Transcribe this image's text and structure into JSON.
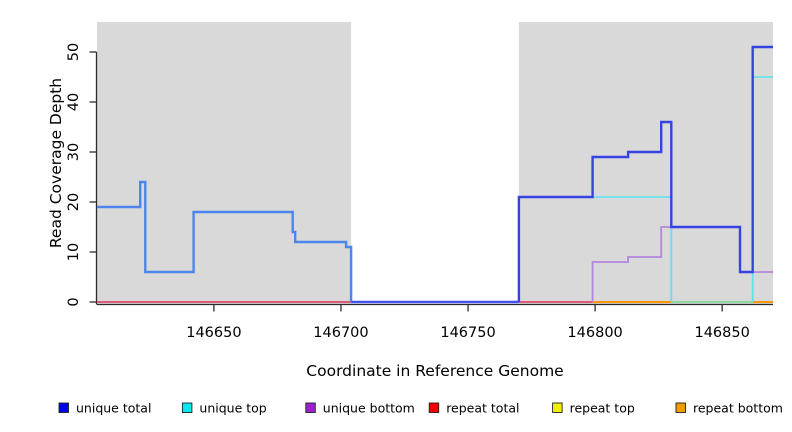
{
  "chart_data": {
    "type": "line",
    "title": "",
    "xlabel": "Coordinate in Reference Genome",
    "ylabel": "Read Coverage Depth",
    "xlim": [
      146604,
      146870
    ],
    "ylim": [
      0,
      56
    ],
    "grid": "off",
    "legend_position": "bottom",
    "x_ticks": [
      {
        "value": 146650,
        "label": "146650"
      },
      {
        "value": 146700,
        "label": "146700"
      },
      {
        "value": 146750,
        "label": "146750"
      },
      {
        "value": 146800,
        "label": "146800"
      },
      {
        "value": 146850,
        "label": "146850"
      }
    ],
    "y_ticks": [
      {
        "value": 0,
        "label": "0"
      },
      {
        "value": 10,
        "label": "10"
      },
      {
        "value": 20,
        "label": "20"
      },
      {
        "value": 30,
        "label": "30"
      },
      {
        "value": 40,
        "label": "40"
      },
      {
        "value": 50,
        "label": "50"
      }
    ],
    "shaded_regions": [
      {
        "x0": 146604,
        "x1": 146704,
        "color": "#D9D9D9"
      },
      {
        "x0": 146770,
        "x1": 146870,
        "color": "#D9D9D9"
      }
    ],
    "series": [
      {
        "name": "unique total",
        "type": "step",
        "step_points": [
          [
            146604,
            19
          ],
          [
            146621,
            24
          ],
          [
            146623,
            6
          ],
          [
            146642,
            18
          ],
          [
            146681,
            14
          ],
          [
            146682,
            12
          ],
          [
            146702,
            11
          ],
          [
            146704,
            0
          ],
          [
            146770,
            21
          ],
          [
            146799,
            29
          ],
          [
            146813,
            30
          ],
          [
            146826,
            36
          ],
          [
            146830,
            15
          ],
          [
            146857,
            6
          ],
          [
            146862,
            51
          ],
          [
            146870,
            51
          ]
        ]
      },
      {
        "name": "unique top",
        "type": "step",
        "step_points": [
          [
            146770,
            21
          ],
          [
            146830,
            0
          ],
          [
            146862,
            45
          ],
          [
            146870,
            45
          ]
        ]
      },
      {
        "name": "unique bottom",
        "type": "step",
        "step_points": [
          [
            146799,
            8
          ],
          [
            146813,
            9
          ],
          [
            146826,
            15
          ],
          [
            146857,
            6
          ],
          [
            146870,
            6
          ]
        ]
      },
      {
        "name": "repeat total",
        "type": "step",
        "step_points": [
          [
            146604,
            0
          ],
          [
            146870,
            0
          ]
        ]
      },
      {
        "name": "repeat top",
        "type": "step",
        "step_points": [
          [
            146604,
            0
          ],
          [
            146870,
            0
          ]
        ]
      },
      {
        "name": "repeat bottom",
        "type": "step",
        "step_points": [
          [
            146604,
            0
          ],
          [
            146870,
            0
          ]
        ]
      }
    ],
    "render_lines": [
      {
        "name": "baseline-repeat-left",
        "color": "#DD5A78",
        "width": 2,
        "points": [
          [
            146604,
            0
          ],
          [
            146704,
            0
          ]
        ]
      },
      {
        "name": "baseline-repeat-mid",
        "color": "#DD5A78",
        "width": 2,
        "points": [
          [
            146770,
            0
          ],
          [
            146799,
            0
          ]
        ]
      },
      {
        "name": "baseline-orange-1",
        "color": "#FF9500",
        "width": 2,
        "points": [
          [
            146799,
            0
          ],
          [
            146830,
            0
          ]
        ]
      },
      {
        "name": "baseline-green",
        "color": "#8FD9A0",
        "width": 2,
        "points": [
          [
            146830,
            0
          ],
          [
            146862,
            0
          ]
        ]
      },
      {
        "name": "baseline-orange-2",
        "color": "#FF9500",
        "width": 2,
        "points": [
          [
            146862,
            0
          ],
          [
            146870,
            0
          ]
        ]
      },
      {
        "name": "unique-bottom-line",
        "color": "#B286DF",
        "width": 1.8,
        "points": [
          [
            146799,
            0
          ],
          [
            146799,
            8
          ],
          [
            146813,
            8
          ],
          [
            146813,
            9
          ],
          [
            146826,
            9
          ],
          [
            146826,
            15
          ],
          [
            146857,
            15
          ],
          [
            146857,
            6
          ],
          [
            146870,
            6
          ]
        ]
      },
      {
        "name": "unique-top-line",
        "color": "#66E2EA",
        "width": 1.8,
        "points": [
          [
            146770,
            21
          ],
          [
            146830,
            21
          ],
          [
            146830,
            0
          ]
        ]
      },
      {
        "name": "unique-top-line-right",
        "color": "#66E2EA",
        "width": 1.8,
        "points": [
          [
            146862,
            0
          ],
          [
            146862,
            45
          ],
          [
            146870,
            45
          ]
        ]
      },
      {
        "name": "unique-total-left",
        "color": "#4C86EC",
        "width": 2.4,
        "points": [
          [
            146604,
            19
          ],
          [
            146621,
            19
          ],
          [
            146621,
            24
          ],
          [
            146623,
            24
          ],
          [
            146623,
            6
          ],
          [
            146642,
            6
          ],
          [
            146642,
            18
          ],
          [
            146681,
            18
          ],
          [
            146681,
            14
          ],
          [
            146682,
            14
          ],
          [
            146682,
            12
          ],
          [
            146702,
            12
          ],
          [
            146702,
            11
          ],
          [
            146704,
            11
          ],
          [
            146704,
            0
          ]
        ]
      },
      {
        "name": "unique-total-gap",
        "color": "#4553EE",
        "width": 2.4,
        "points": [
          [
            146704,
            0
          ],
          [
            146770,
            0
          ]
        ]
      },
      {
        "name": "unique-total-right",
        "color": "#3543E1",
        "width": 2.4,
        "points": [
          [
            146770,
            0
          ],
          [
            146770,
            21
          ],
          [
            146799,
            21
          ],
          [
            146799,
            29
          ],
          [
            146813,
            29
          ],
          [
            146813,
            30
          ],
          [
            146826,
            30
          ],
          [
            146826,
            36
          ],
          [
            146830,
            36
          ],
          [
            146830,
            15
          ],
          [
            146857,
            15
          ],
          [
            146857,
            6
          ],
          [
            146862,
            6
          ],
          [
            146862,
            51
          ],
          [
            146870,
            51
          ]
        ]
      }
    ]
  },
  "legend": {
    "items": [
      {
        "label": "unique total",
        "color": "#0000EE"
      },
      {
        "label": "unique top",
        "color": "#00E8F0"
      },
      {
        "label": "unique bottom",
        "color": "#9C1FD1"
      },
      {
        "label": "repeat total",
        "color": "#EE0000"
      },
      {
        "label": "repeat top",
        "color": "#F0F000"
      },
      {
        "label": "repeat bottom",
        "color": "#F09C00"
      }
    ]
  },
  "colors": {
    "shading": "#D9D9D9",
    "axis": "#2B2B2B",
    "unique_total_left": "#4C86EC",
    "unique_total_right": "#3543E1",
    "unique_top": "#66E2EA",
    "unique_bottom": "#B286DF",
    "repeat_total_baseline": "#DD5A78",
    "repeat_bottom_baseline": "#FF9500",
    "overlap_baseline_green": "#8FD9A0"
  }
}
